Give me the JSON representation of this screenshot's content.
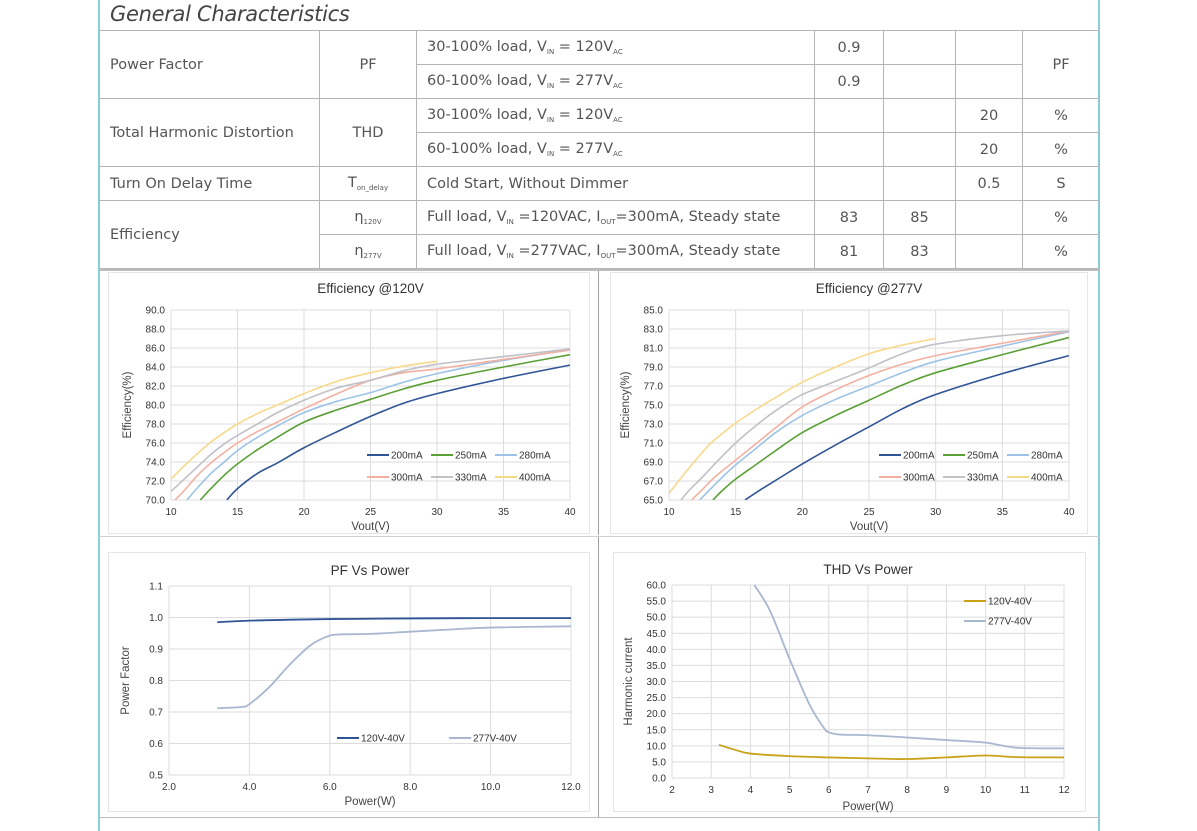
{
  "section_title": "General Characteristics",
  "spec_rows": [
    {
      "param": "Power Factor",
      "symbol": "PF",
      "symbol_sub": "",
      "conditions": [
        {
          "pre": "30-100% load, V",
          "sub1": "IN",
          "mid": " = 120V",
          "sub2": "AC",
          "post": "",
          "min": "0.9",
          "typ": "",
          "max": ""
        },
        {
          "pre": "60-100% load, V",
          "sub1": "IN",
          "mid": " = 277V",
          "sub2": "AC",
          "post": "",
          "min": "0.9",
          "typ": "",
          "max": ""
        }
      ],
      "unit": "PF"
    },
    {
      "param": "Total Harmonic Distortion",
      "symbol": "THD",
      "symbol_sub": "",
      "conditions": [
        {
          "pre": "30-100% load, V",
          "sub1": "IN",
          "mid": " = 120V",
          "sub2": "AC",
          "post": "",
          "min": "",
          "typ": "",
          "max": "20",
          "unit": "%"
        },
        {
          "pre": "60-100% load, V",
          "sub1": "IN",
          "mid": " = 277V",
          "sub2": "AC",
          "post": "",
          "min": "",
          "typ": "",
          "max": "20",
          "unit": "%"
        }
      ]
    },
    {
      "param": "Turn On Delay Time",
      "symbol": "T",
      "symbol_sub": "on_delay",
      "conditions": [
        {
          "pre": "Cold Start, Without Dimmer",
          "sub1": "",
          "mid": "",
          "sub2": "",
          "post": "",
          "min": "",
          "typ": "",
          "max": "0.5",
          "unit": "S"
        }
      ]
    },
    {
      "param": "Efficiency",
      "symbol": "",
      "symbol_sub": "",
      "conditions": [
        {
          "sym": "η",
          "sym_sub": "120V",
          "pre": "Full load, V",
          "sub1": "IN",
          "mid": " =120VAC, I",
          "sub2": "OUT",
          "post": "=300mA, Steady state",
          "min": "83",
          "typ": "85",
          "max": "",
          "unit": "%"
        },
        {
          "sym": "η",
          "sym_sub": "277V",
          "pre": "Full load, V",
          "sub1": "IN",
          "mid": " =277VAC, I",
          "sub2": "OUT",
          "post": "=300mA, Steady state",
          "min": "81",
          "typ": "83",
          "max": "",
          "unit": "%"
        }
      ]
    }
  ],
  "chart_data": [
    {
      "id": "eff120",
      "type": "line",
      "title": "Efficiency @120V",
      "xlabel": "Vout(V)",
      "ylabel": "Efficiency(%)",
      "xlim": [
        10,
        40
      ],
      "ylim": [
        70,
        90
      ],
      "xticks": [
        "10",
        "15",
        "20",
        "25",
        "30",
        "35",
        "40"
      ],
      "yticks": [
        "70.0",
        "72.0",
        "74.0",
        "76.0",
        "78.0",
        "80.0",
        "82.0",
        "84.0",
        "86.0",
        "88.0",
        "90.0"
      ],
      "grid": true,
      "legend": "bottom-right",
      "series": [
        {
          "name": "200mA",
          "color": "#2f5597",
          "x": [
            14.2,
            15,
            16.5,
            18,
            20,
            22.5,
            25,
            27.5,
            30,
            35,
            40
          ],
          "y": [
            70.0,
            71.2,
            72.8,
            73.9,
            75.5,
            77.2,
            78.8,
            80.2,
            81.2,
            82.8,
            84.2
          ]
        },
        {
          "name": "250mA",
          "color": "#5aa035",
          "x": [
            12.2,
            13,
            14,
            15,
            16.5,
            18,
            20,
            22.5,
            25,
            27.5,
            30,
            35,
            40
          ],
          "y": [
            70.0,
            71.2,
            72.6,
            73.8,
            75.3,
            76.6,
            78.2,
            79.5,
            80.6,
            81.7,
            82.6,
            84.0,
            85.3
          ]
        },
        {
          "name": "280mA",
          "color": "#9dc3e6",
          "x": [
            11.2,
            12,
            13,
            14,
            15,
            16.5,
            18,
            20,
            22.5,
            25,
            27.5,
            30,
            35,
            40
          ],
          "y": [
            70.0,
            71.3,
            72.8,
            74.0,
            75.2,
            76.6,
            77.8,
            79.2,
            80.4,
            81.3,
            82.4,
            83.3,
            84.7,
            85.8
          ]
        },
        {
          "name": "300mA",
          "color": "#f4b0a0",
          "x": [
            10.3,
            11,
            12,
            13,
            14,
            15,
            16.5,
            18,
            20,
            22.5,
            25,
            27.5,
            30,
            35,
            40
          ],
          "y": [
            70.0,
            71.0,
            72.6,
            73.9,
            75.0,
            76.0,
            77.2,
            78.2,
            79.6,
            81.2,
            82.6,
            83.4,
            83.8,
            84.8,
            85.8
          ]
        },
        {
          "name": "330mA",
          "color": "#c0c0c8",
          "x": [
            10,
            11,
            12,
            13,
            14,
            15,
            16.5,
            18,
            20,
            22.5,
            25,
            27.5,
            30,
            35,
            40
          ],
          "y": [
            70.9,
            72.2,
            73.5,
            74.8,
            75.9,
            76.8,
            78.0,
            79.2,
            80.5,
            81.8,
            82.6,
            83.6,
            84.3,
            85.1,
            85.9
          ]
        },
        {
          "name": "400mA",
          "color": "#f8d98a",
          "x": [
            10,
            11,
            12,
            13,
            14,
            15,
            16.5,
            18,
            20,
            22.5,
            25,
            27.5,
            30
          ],
          "y": [
            72.2,
            73.6,
            74.9,
            76.1,
            77.1,
            78.0,
            79.1,
            80.0,
            81.2,
            82.5,
            83.4,
            84.1,
            84.6
          ]
        }
      ]
    },
    {
      "id": "eff277",
      "type": "line",
      "title": "Efficiency @277V",
      "xlabel": "Vout(V)",
      "ylabel": "Efficiency(%)",
      "xlim": [
        10,
        40
      ],
      "ylim": [
        65,
        85
      ],
      "xticks": [
        "10",
        "15",
        "20",
        "25",
        "30",
        "35",
        "40"
      ],
      "yticks": [
        "65.0",
        "67.0",
        "69.0",
        "71.0",
        "73.0",
        "75.0",
        "77.0",
        "79.0",
        "81.0",
        "83.0",
        "85.0"
      ],
      "grid": true,
      "legend": "bottom-right",
      "series": [
        {
          "name": "200mA",
          "color": "#2f5597",
          "x": [
            15.7,
            17,
            18.5,
            20,
            22.5,
            25,
            27.5,
            30,
            35,
            40
          ],
          "y": [
            65.0,
            66.2,
            67.5,
            68.8,
            70.8,
            72.7,
            74.6,
            76.1,
            78.3,
            80.2
          ]
        },
        {
          "name": "250mA",
          "color": "#5aa035",
          "x": [
            13.3,
            14,
            15,
            16.5,
            18,
            20,
            22.5,
            25,
            27.5,
            30,
            35,
            40
          ],
          "y": [
            65.0,
            66.0,
            67.2,
            68.7,
            70.2,
            72.1,
            73.9,
            75.5,
            77.1,
            78.4,
            80.3,
            82.1
          ]
        },
        {
          "name": "280mA",
          "color": "#9dc3e6",
          "x": [
            12.3,
            13,
            14,
            15,
            16.5,
            18,
            20,
            22.5,
            25,
            27.5,
            30,
            35,
            40
          ],
          "y": [
            65.0,
            66.0,
            67.4,
            68.7,
            70.4,
            72.1,
            73.9,
            75.6,
            77.0,
            78.4,
            79.6,
            81.2,
            82.7
          ]
        },
        {
          "name": "300mA",
          "color": "#f4b0a0",
          "x": [
            11.7,
            12.5,
            13.5,
            15,
            16.5,
            18,
            20,
            22.5,
            25,
            27.5,
            30,
            35,
            40
          ],
          "y": [
            65.0,
            66.1,
            67.5,
            69.2,
            70.9,
            72.6,
            74.8,
            76.6,
            78.1,
            79.3,
            80.2,
            81.5,
            82.8
          ]
        },
        {
          "name": "330mA",
          "color": "#c0c0c8",
          "x": [
            10.9,
            11.5,
            12.5,
            13.5,
            15,
            16.5,
            18,
            20,
            22.5,
            25,
            27.5,
            30,
            35,
            40
          ],
          "y": [
            65.0,
            66.0,
            67.4,
            68.9,
            71.0,
            72.8,
            74.4,
            76.1,
            77.5,
            78.9,
            80.4,
            81.4,
            82.3,
            82.8
          ]
        },
        {
          "name": "400mA",
          "color": "#f8d98a",
          "x": [
            10,
            11,
            12,
            13,
            14,
            15,
            16.5,
            18,
            20,
            22.5,
            25,
            27.5,
            30
          ],
          "y": [
            65.7,
            67.5,
            69.2,
            70.8,
            72.0,
            73.1,
            74.5,
            75.8,
            77.4,
            79.0,
            80.4,
            81.3,
            82.0
          ]
        }
      ]
    },
    {
      "id": "pf",
      "type": "line",
      "title": "PF Vs Power",
      "xlabel": "Power(W)",
      "ylabel": "Power Factor",
      "xlim": [
        2,
        12
      ],
      "ylim": [
        0.5,
        1.1
      ],
      "xticks": [
        "2.0",
        "4.0",
        "6.0",
        "8.0",
        "10.0",
        "12.0"
      ],
      "yticks": [
        "0.5",
        "0.6",
        "0.7",
        "0.8",
        "0.9",
        "1.0",
        "1.1"
      ],
      "grid": true,
      "legend": "bottom",
      "series": [
        {
          "name": "120V-40V",
          "color": "#2f5597",
          "x": [
            3.2,
            4,
            5,
            6,
            7,
            8,
            10,
            12
          ],
          "y": [
            0.985,
            0.99,
            0.993,
            0.995,
            0.996,
            0.997,
            0.998,
            0.998
          ]
        },
        {
          "name": "277V-40V",
          "color": "#a9b7d0",
          "x": [
            3.2,
            3.8,
            4.0,
            4.5,
            5.0,
            5.5,
            5.9,
            6.2,
            7,
            8,
            9,
            10,
            12
          ],
          "y": [
            0.712,
            0.716,
            0.725,
            0.78,
            0.85,
            0.91,
            0.938,
            0.946,
            0.948,
            0.955,
            0.962,
            0.968,
            0.972
          ]
        }
      ]
    },
    {
      "id": "thd",
      "type": "line",
      "title": "THD Vs Power",
      "xlabel": "Power(W)",
      "ylabel": "Harmonic current",
      "xlim": [
        2,
        12
      ],
      "ylim": [
        0,
        60
      ],
      "xticks": [
        "2",
        "3",
        "4",
        "5",
        "6",
        "7",
        "8",
        "9",
        "10",
        "11",
        "12"
      ],
      "yticks": [
        "0.0",
        "5.0",
        "10.0",
        "15.0",
        "20.0",
        "25.0",
        "30.0",
        "35.0",
        "40.0",
        "45.0",
        "50.0",
        "55.0",
        "60.0"
      ],
      "grid": true,
      "legend": "top-right",
      "series": [
        {
          "name": "120V-40V",
          "color": "#c9a21a",
          "x": [
            3.2,
            3.6,
            4,
            5,
            6,
            7,
            8,
            9,
            10,
            10.8,
            12
          ],
          "y": [
            10.3,
            8.8,
            7.6,
            6.8,
            6.4,
            6.1,
            5.9,
            6.4,
            7.0,
            6.5,
            6.4
          ]
        },
        {
          "name": "277V-40V",
          "color": "#a9b7d0",
          "x": [
            4.1,
            4.5,
            5,
            5.5,
            5.85,
            6.0,
            6.3,
            7,
            8,
            9,
            10,
            10.8,
            12
          ],
          "y": [
            60.0,
            52.0,
            37.0,
            23.0,
            16.0,
            14.2,
            13.5,
            13.3,
            12.6,
            11.8,
            11.0,
            9.4,
            9.2
          ]
        }
      ]
    }
  ]
}
